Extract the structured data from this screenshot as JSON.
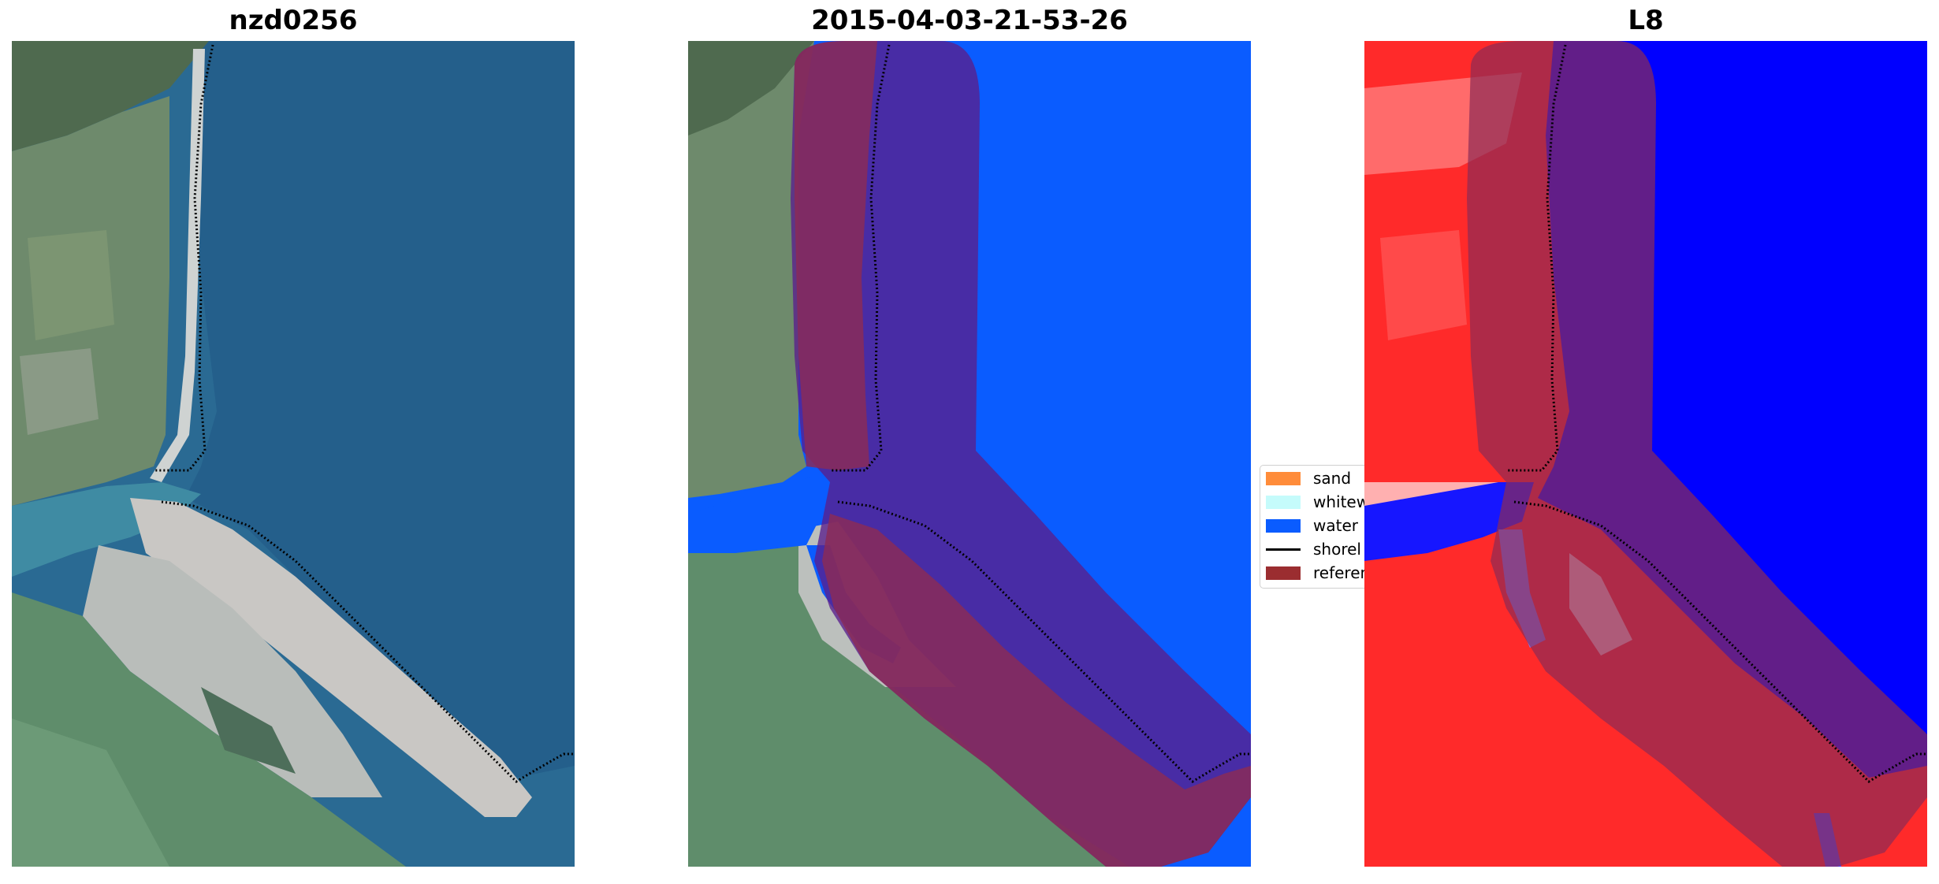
{
  "panels": [
    {
      "title": "nzd0256"
    },
    {
      "title": "2015-04-03-21-53-26"
    },
    {
      "title": "L8"
    }
  ],
  "legend": {
    "items": [
      {
        "label": "sand",
        "color": "#ff8c3a",
        "type": "patch"
      },
      {
        "label": "whitew",
        "color": "#c5fbfb",
        "type": "patch"
      },
      {
        "label": "water",
        "color": "#0a5cff",
        "type": "patch"
      },
      {
        "label": "shorel",
        "color": "#000000",
        "type": "line"
      },
      {
        "label": "referen",
        "color": "#9b2d30",
        "type": "patch"
      }
    ]
  },
  "colors": {
    "water_true": "#2a6a93",
    "water_class": "#0a5cff",
    "reference_buffer": "#8b2b55",
    "land_green": "#5d8a6f",
    "shoreline": "#000000",
    "index_red": "#ff2a2a",
    "index_blue": "#0000ff"
  }
}
